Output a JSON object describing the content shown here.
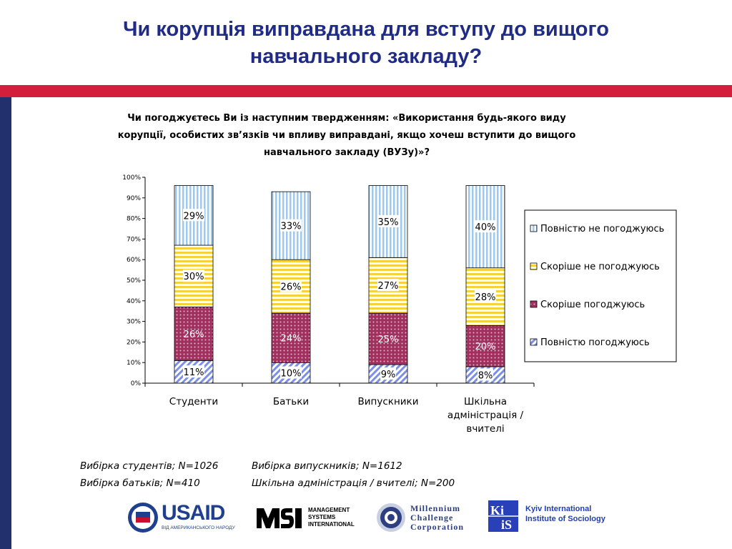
{
  "page": {
    "title_lines": [
      "Чи корупція виправдана для вступу до вищого",
      "навчального закладу?"
    ]
  },
  "colors": {
    "title": "#1F2B86",
    "top_bar": "#D11F3C",
    "side_bar": "#22306E",
    "series": {
      "full_agree": "#7B8FE8",
      "rather_agree": "#A0305E",
      "rather_disagree": "#F6D23A",
      "full_disagree": "#9EC8EE"
    }
  },
  "chart_data": {
    "type": "bar",
    "stacked": true,
    "title_lines": [
      "Чи погоджуєтесь Ви із наступним твердженням: «Використання будь-якого виду",
      "корупції, особистих зв’язків чи впливу виправдані, якщо хочеш вступити до вищого",
      "навчального закладу (ВУЗу)»?"
    ],
    "categories": [
      [
        "Студенти"
      ],
      [
        "Батьки"
      ],
      [
        "Випускники"
      ],
      [
        "Шкільна",
        "адміністрація /",
        "вчителі"
      ]
    ],
    "series": [
      {
        "key": "full_agree",
        "name": "Повністю погоджуюсь",
        "values": [
          11,
          10,
          9,
          8
        ],
        "labels": [
          "11%",
          "10%",
          "9%",
          "8%"
        ]
      },
      {
        "key": "rather_agree",
        "name": "Скоріше погоджуюсь",
        "values": [
          26,
          24,
          25,
          20
        ],
        "labels": [
          "26%",
          "24%",
          "25%",
          "20%"
        ]
      },
      {
        "key": "rather_disagree",
        "name": "Скоріше не погоджуюсь",
        "values": [
          30,
          26,
          27,
          28
        ],
        "labels": [
          "30%",
          "26%",
          "27%",
          "28%"
        ]
      },
      {
        "key": "full_disagree",
        "name": "Повністю не погоджуюсь",
        "values": [
          29,
          33,
          35,
          40
        ],
        "labels": [
          "29%",
          "33%",
          "35%",
          "40%"
        ]
      }
    ],
    "yticks": [
      "0%",
      "10%",
      "20%",
      "30%",
      "40%",
      "50%",
      "60%",
      "70%",
      "80%",
      "90%",
      "100%"
    ],
    "ylim": [
      0,
      100
    ],
    "legend_position": "right",
    "legend_order": [
      "full_disagree",
      "rather_disagree",
      "rather_agree",
      "full_agree"
    ],
    "grid": false
  },
  "notes": {
    "students": "Вибірка студентів; N=1026",
    "graduates": "Вибірка випускників; N=1612",
    "parents": "Вибірка батьків; N=410",
    "teachers": "Шкільна адміністрація / вчителі; N=200"
  },
  "logos": {
    "usaid": {
      "name": "USAID",
      "subtitle": "ВІД АМЕРИКАНСЬКОГО НАРОДУ"
    },
    "msi": {
      "lines": [
        "MANAGEMENT",
        "SYSTEMS",
        "INTERNATIONAL"
      ]
    },
    "mcc": {
      "lines": [
        "Millennium",
        "Challenge",
        "Corporation"
      ]
    },
    "kiis": {
      "lines": [
        "Kyiv International",
        "Institute of Sociology"
      ]
    }
  }
}
